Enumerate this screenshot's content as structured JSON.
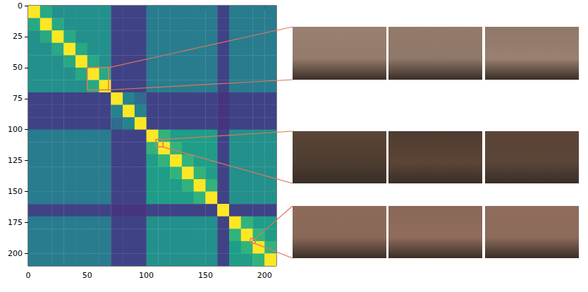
{
  "chart_data": {
    "type": "heatmap",
    "xlim": [
      0,
      210
    ],
    "ylim": [
      210,
      0
    ],
    "xticks": [
      0,
      50,
      100,
      150,
      200
    ],
    "yticks": [
      0,
      25,
      50,
      75,
      100,
      125,
      150,
      175,
      200
    ],
    "cell_size": 10,
    "zlim": [
      0,
      1
    ],
    "cells": [
      [
        1,
        0.6,
        0.5,
        0.5,
        0.5,
        0.5,
        0.5,
        0.2,
        0.2,
        0.2,
        0.42,
        0.42,
        0.42,
        0.42,
        0.42,
        0.42,
        0.2,
        0.42,
        0.42,
        0.42,
        0.42
      ],
      [
        0.6,
        1,
        0.6,
        0.5,
        0.5,
        0.5,
        0.5,
        0.2,
        0.2,
        0.2,
        0.42,
        0.42,
        0.42,
        0.42,
        0.42,
        0.42,
        0.2,
        0.42,
        0.42,
        0.42,
        0.42
      ],
      [
        0.5,
        0.6,
        1,
        0.6,
        0.5,
        0.5,
        0.5,
        0.2,
        0.2,
        0.2,
        0.42,
        0.42,
        0.42,
        0.42,
        0.42,
        0.42,
        0.2,
        0.42,
        0.42,
        0.42,
        0.42
      ],
      [
        0.5,
        0.5,
        0.6,
        1,
        0.6,
        0.5,
        0.5,
        0.2,
        0.2,
        0.2,
        0.42,
        0.42,
        0.42,
        0.42,
        0.42,
        0.42,
        0.2,
        0.42,
        0.42,
        0.42,
        0.42
      ],
      [
        0.5,
        0.5,
        0.5,
        0.6,
        1,
        0.6,
        0.5,
        0.2,
        0.2,
        0.2,
        0.42,
        0.42,
        0.42,
        0.42,
        0.42,
        0.42,
        0.2,
        0.42,
        0.42,
        0.42,
        0.42
      ],
      [
        0.5,
        0.5,
        0.5,
        0.5,
        0.6,
        1,
        0.6,
        0.2,
        0.2,
        0.2,
        0.42,
        0.42,
        0.42,
        0.42,
        0.42,
        0.42,
        0.2,
        0.42,
        0.42,
        0.42,
        0.42
      ],
      [
        0.5,
        0.5,
        0.5,
        0.5,
        0.5,
        0.6,
        1,
        0.2,
        0.2,
        0.2,
        0.42,
        0.42,
        0.42,
        0.42,
        0.42,
        0.42,
        0.2,
        0.42,
        0.42,
        0.42,
        0.42
      ],
      [
        0.2,
        0.2,
        0.2,
        0.2,
        0.2,
        0.2,
        0.2,
        1,
        0.45,
        0.35,
        0.2,
        0.2,
        0.2,
        0.2,
        0.2,
        0.2,
        0.15,
        0.2,
        0.2,
        0.2,
        0.2
      ],
      [
        0.2,
        0.2,
        0.2,
        0.2,
        0.2,
        0.2,
        0.2,
        0.45,
        1,
        0.45,
        0.2,
        0.2,
        0.2,
        0.2,
        0.2,
        0.2,
        0.15,
        0.2,
        0.2,
        0.2,
        0.2
      ],
      [
        0.2,
        0.2,
        0.2,
        0.2,
        0.2,
        0.2,
        0.2,
        0.35,
        0.45,
        1,
        0.2,
        0.2,
        0.2,
        0.2,
        0.2,
        0.2,
        0.15,
        0.2,
        0.2,
        0.2,
        0.2
      ],
      [
        0.42,
        0.42,
        0.42,
        0.42,
        0.42,
        0.42,
        0.42,
        0.2,
        0.2,
        0.2,
        1,
        0.65,
        0.55,
        0.55,
        0.55,
        0.55,
        0.2,
        0.5,
        0.5,
        0.5,
        0.5
      ],
      [
        0.42,
        0.42,
        0.42,
        0.42,
        0.42,
        0.42,
        0.42,
        0.2,
        0.2,
        0.2,
        0.65,
        1,
        0.65,
        0.55,
        0.55,
        0.55,
        0.2,
        0.5,
        0.5,
        0.5,
        0.5
      ],
      [
        0.42,
        0.42,
        0.42,
        0.42,
        0.42,
        0.42,
        0.42,
        0.2,
        0.2,
        0.2,
        0.55,
        0.65,
        1,
        0.65,
        0.55,
        0.55,
        0.2,
        0.5,
        0.5,
        0.5,
        0.5
      ],
      [
        0.42,
        0.42,
        0.42,
        0.42,
        0.42,
        0.42,
        0.42,
        0.2,
        0.2,
        0.2,
        0.55,
        0.55,
        0.65,
        1,
        0.65,
        0.55,
        0.2,
        0.5,
        0.5,
        0.5,
        0.5
      ],
      [
        0.42,
        0.42,
        0.42,
        0.42,
        0.42,
        0.42,
        0.42,
        0.2,
        0.2,
        0.2,
        0.55,
        0.55,
        0.55,
        0.65,
        1,
        0.65,
        0.2,
        0.5,
        0.5,
        0.5,
        0.5
      ],
      [
        0.42,
        0.42,
        0.42,
        0.42,
        0.42,
        0.42,
        0.42,
        0.2,
        0.2,
        0.2,
        0.55,
        0.55,
        0.55,
        0.55,
        0.65,
        1,
        0.2,
        0.5,
        0.5,
        0.5,
        0.5
      ],
      [
        0.2,
        0.2,
        0.2,
        0.2,
        0.2,
        0.2,
        0.2,
        0.15,
        0.15,
        0.15,
        0.2,
        0.2,
        0.2,
        0.2,
        0.2,
        0.2,
        1,
        0.2,
        0.2,
        0.2,
        0.2
      ],
      [
        0.42,
        0.42,
        0.42,
        0.42,
        0.42,
        0.42,
        0.42,
        0.2,
        0.2,
        0.2,
        0.5,
        0.5,
        0.5,
        0.5,
        0.5,
        0.5,
        0.2,
        1,
        0.65,
        0.55,
        0.55
      ],
      [
        0.42,
        0.42,
        0.42,
        0.42,
        0.42,
        0.42,
        0.42,
        0.2,
        0.2,
        0.2,
        0.5,
        0.5,
        0.5,
        0.5,
        0.5,
        0.5,
        0.2,
        0.65,
        1,
        0.65,
        0.55
      ],
      [
        0.42,
        0.42,
        0.42,
        0.42,
        0.42,
        0.42,
        0.42,
        0.2,
        0.2,
        0.2,
        0.5,
        0.5,
        0.5,
        0.5,
        0.5,
        0.5,
        0.2,
        0.55,
        0.65,
        1,
        0.65
      ],
      [
        0.42,
        0.42,
        0.42,
        0.42,
        0.42,
        0.42,
        0.42,
        0.2,
        0.2,
        0.2,
        0.5,
        0.5,
        0.5,
        0.5,
        0.5,
        0.5,
        0.2,
        0.55,
        0.55,
        0.65,
        1
      ]
    ],
    "highlights": [
      {
        "x": [
          50,
          68
        ],
        "y": [
          50,
          68
        ]
      },
      {
        "x": [
          108,
          114
        ],
        "y": [
          108,
          114
        ]
      },
      {
        "x": [
          188,
          192
        ],
        "y": [
          188,
          192
        ]
      }
    ],
    "grid": false
  }
}
